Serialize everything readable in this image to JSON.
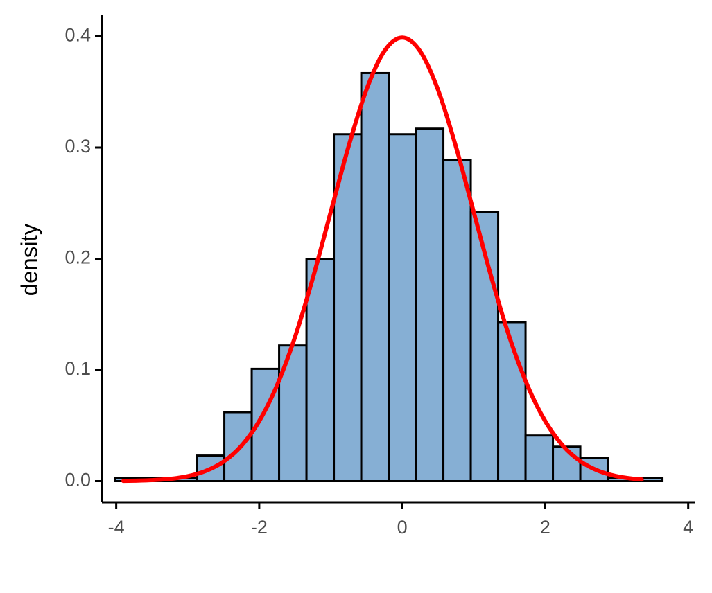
{
  "chart_data": {
    "type": "histogram",
    "y_label": "density",
    "bins": [
      -4.02,
      -3.637,
      -3.254,
      -2.871,
      -2.488,
      -2.105,
      -1.722,
      -1.339,
      -0.956,
      -0.573,
      -0.19,
      0.193,
      0.576,
      0.959,
      1.342,
      1.725,
      2.108,
      2.491,
      2.874,
      3.257,
      3.64
    ],
    "values": [
      0.003,
      0.003,
      0.003,
      0.023,
      0.062,
      0.101,
      0.122,
      0.2,
      0.312,
      0.367,
      0.312,
      0.317,
      0.289,
      0.242,
      0.143,
      0.041,
      0.031,
      0.021,
      0.003,
      0.003
    ],
    "color": "#86afd4",
    "edge_color": "#000000",
    "density_curve": {
      "type": "line",
      "color": "#ff0000",
      "x": [
        -3.9,
        -3.75,
        -3.5,
        -3.25,
        -3,
        -2.75,
        -2.5,
        -2.25,
        -2,
        -1.75,
        -1.5,
        -1.25,
        -1,
        -0.75,
        -0.5,
        -0.25,
        0,
        0.25,
        0.5,
        0.75,
        1,
        1.25,
        1.5,
        1.75,
        2,
        2.25,
        2.5,
        2.75,
        3,
        3.25,
        3.35
      ],
      "values": [
        0.0002,
        0.0004,
        0.0009,
        0.002,
        0.0044,
        0.0091,
        0.0175,
        0.0317,
        0.054,
        0.0863,
        0.1295,
        0.1826,
        0.242,
        0.3011,
        0.3521,
        0.3867,
        0.3989,
        0.3867,
        0.3521,
        0.3011,
        0.242,
        0.1826,
        0.1295,
        0.0863,
        0.054,
        0.0317,
        0.0175,
        0.0091,
        0.0044,
        0.002,
        0.0015
      ]
    },
    "xlim": [
      -4.2,
      4.1
    ],
    "ylim": [
      -0.019,
      0.419
    ],
    "xticks": [
      -4,
      -2,
      0,
      2,
      4
    ],
    "yticks": [
      {
        "value": 0,
        "label": "0.0"
      },
      0.1,
      0.2,
      0.3,
      0.4
    ]
  }
}
